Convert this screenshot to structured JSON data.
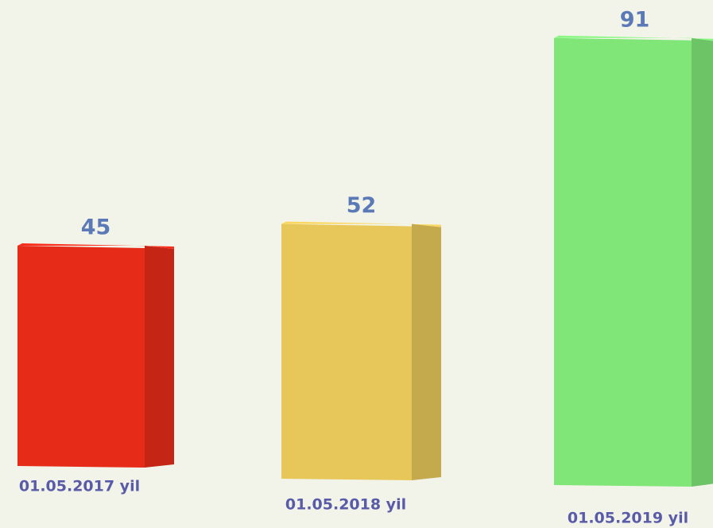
{
  "chart_data": {
    "type": "bar3d",
    "categories": [
      "01.05.2017 yil",
      "01.05.2018 yil",
      "01.05.2019 yil"
    ],
    "values": [
      45,
      52,
      91
    ],
    "colors": [
      "#e72b19",
      "#e8c75a",
      "#80e678"
    ]
  }
}
